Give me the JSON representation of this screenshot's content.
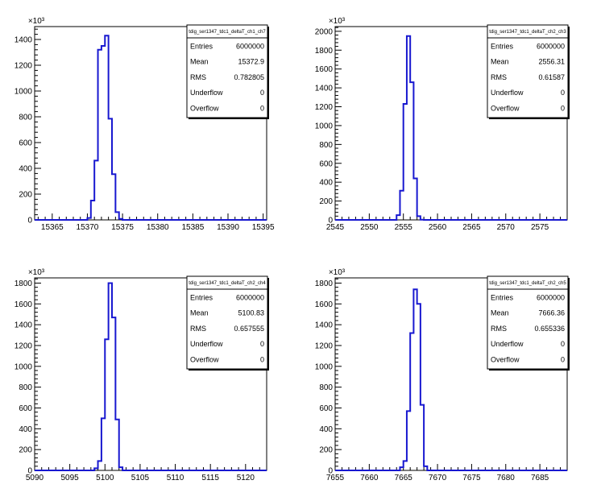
{
  "chart_data": [
    {
      "type": "histogram",
      "stats_title": "tdig_ser1347_tdc1_deltaT_ch1_ch7",
      "scale_label": "×10³",
      "xlim": [
        15362.5,
        15395.5
      ],
      "ylim": [
        0,
        1500
      ],
      "xticks": [
        15365,
        15370,
        15375,
        15380,
        15385,
        15390,
        15395
      ],
      "yticks": [
        0,
        200,
        400,
        600,
        800,
        1000,
        1200,
        1400
      ],
      "bins": {
        "x": [
          15370,
          15370.5,
          15371,
          15371.5,
          15372,
          15372.5,
          15373,
          15373.5,
          15374,
          15374.5,
          15375
        ],
        "values": [
          15,
          150,
          460,
          1320,
          1350,
          1430,
          785,
          355,
          60,
          8,
          0
        ]
      },
      "stats": [
        {
          "label": "Entries",
          "value": "6000000"
        },
        {
          "label": "Mean",
          "value": "15372.9"
        },
        {
          "label": "RMS",
          "value": "0.782805"
        },
        {
          "label": "Underflow",
          "value": "0"
        },
        {
          "label": "Overflow",
          "value": "0"
        }
      ]
    },
    {
      "type": "histogram",
      "stats_title": "tdig_ser1347_tdc1_deltaT_ch2_ch3",
      "scale_label": "×10³",
      "xlim": [
        2545,
        2579
      ],
      "ylim": [
        0,
        2050
      ],
      "xticks": [
        2545,
        2550,
        2555,
        2560,
        2565,
        2570,
        2575
      ],
      "yticks": [
        0,
        200,
        400,
        600,
        800,
        1000,
        1200,
        1400,
        1600,
        1800,
        2000
      ],
      "bins": {
        "x": [
          2554,
          2554.5,
          2555,
          2555.5,
          2556,
          2556.5,
          2557,
          2557.5,
          2558
        ],
        "values": [
          50,
          310,
          1230,
          1950,
          1460,
          440,
          40,
          2,
          0
        ]
      },
      "stats": [
        {
          "label": "Entries",
          "value": "6000000"
        },
        {
          "label": "Mean",
          "value": "2556.31"
        },
        {
          "label": "RMS",
          "value": "0.61587"
        },
        {
          "label": "Underflow",
          "value": "0"
        },
        {
          "label": "Overflow",
          "value": "0"
        }
      ]
    },
    {
      "type": "histogram",
      "stats_title": "tdig_ser1347_tdc1_deltaT_ch2_ch4",
      "scale_label": "×10³",
      "xlim": [
        5090,
        5123
      ],
      "ylim": [
        0,
        1850
      ],
      "xticks": [
        5090,
        5095,
        5100,
        5105,
        5110,
        5115,
        5120
      ],
      "yticks": [
        0,
        200,
        400,
        600,
        800,
        1000,
        1200,
        1400,
        1600,
        1800
      ],
      "bins": {
        "x": [
          5098.5,
          5099,
          5099.5,
          5100,
          5100.5,
          5101,
          5101.5,
          5102,
          5102.5
        ],
        "values": [
          20,
          90,
          500,
          1260,
          1800,
          1470,
          490,
          30,
          0
        ]
      },
      "stats": [
        {
          "label": "Entries",
          "value": "6000000"
        },
        {
          "label": "Mean",
          "value": "5100.83"
        },
        {
          "label": "RMS",
          "value": "0.657555"
        },
        {
          "label": "Underflow",
          "value": "0"
        },
        {
          "label": "Overflow",
          "value": "0"
        }
      ]
    },
    {
      "type": "histogram",
      "stats_title": "tdig_ser1347_tdc1_deltaT_ch2_ch5",
      "scale_label": "×10³",
      "xlim": [
        7655,
        7689
      ],
      "ylim": [
        0,
        1850
      ],
      "xticks": [
        7655,
        7660,
        7665,
        7670,
        7675,
        7680,
        7685
      ],
      "yticks": [
        0,
        200,
        400,
        600,
        800,
        1000,
        1200,
        1400,
        1600,
        1800
      ],
      "bins": {
        "x": [
          7664.5,
          7665,
          7665.5,
          7666,
          7666.5,
          7667,
          7667.5,
          7668,
          7668.5
        ],
        "values": [
          30,
          90,
          570,
          1320,
          1740,
          1600,
          630,
          40,
          0
        ]
      },
      "stats": [
        {
          "label": "Entries",
          "value": "6000000"
        },
        {
          "label": "Mean",
          "value": "7666.36"
        },
        {
          "label": "RMS",
          "value": "0.655336"
        },
        {
          "label": "Underflow",
          "value": "0"
        },
        {
          "label": "Overflow",
          "value": "0"
        }
      ]
    }
  ]
}
